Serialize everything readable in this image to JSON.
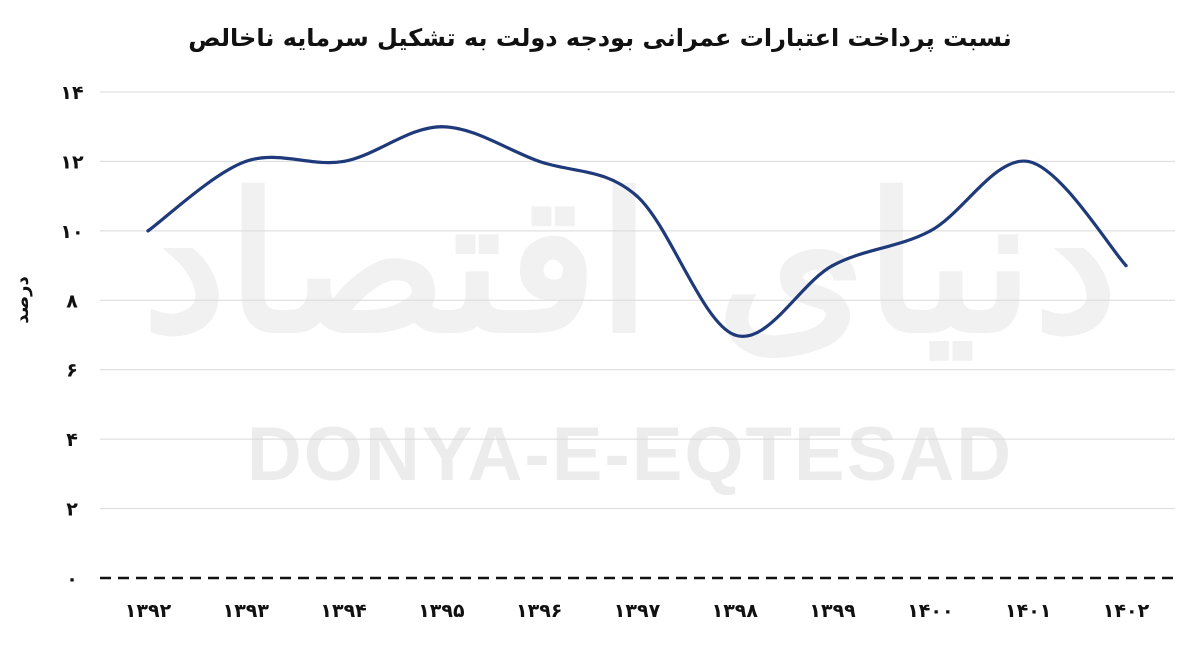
{
  "chart_data": {
    "type": "line",
    "title": "نسبت پرداخت اعتبارات عمرانی بودجه دولت به تشکیل سرمایه ناخالص",
    "xlabel": "",
    "ylabel": "درصد",
    "categories": [
      "۱۳۹۲",
      "۱۳۹۳",
      "۱۳۹۴",
      "۱۳۹۵",
      "۱۳۹۶",
      "۱۳۹۷",
      "۱۳۹۸",
      "۱۳۹۹",
      "۱۴۰۰",
      "۱۴۰۱",
      "۱۴۰۲"
    ],
    "values": [
      10,
      12,
      12,
      13,
      12,
      11,
      7,
      9,
      10,
      12,
      9
    ],
    "ylim": [
      0,
      14
    ],
    "yticks": [
      0,
      2,
      4,
      6,
      8,
      10,
      12,
      14
    ],
    "ytick_labels": [
      "۰",
      "۲",
      "۴",
      "۶",
      "۸",
      "۱۰",
      "۱۲",
      "۱۴"
    ],
    "grid": true,
    "baseline_style": "dashed",
    "line_color": "#1f3a7a",
    "grid_color": "#d9d9d9",
    "smooth": true
  },
  "watermark": {
    "latin": "DONYA-E-EQTESAD",
    "persian": "دنیای اقتصاد"
  }
}
